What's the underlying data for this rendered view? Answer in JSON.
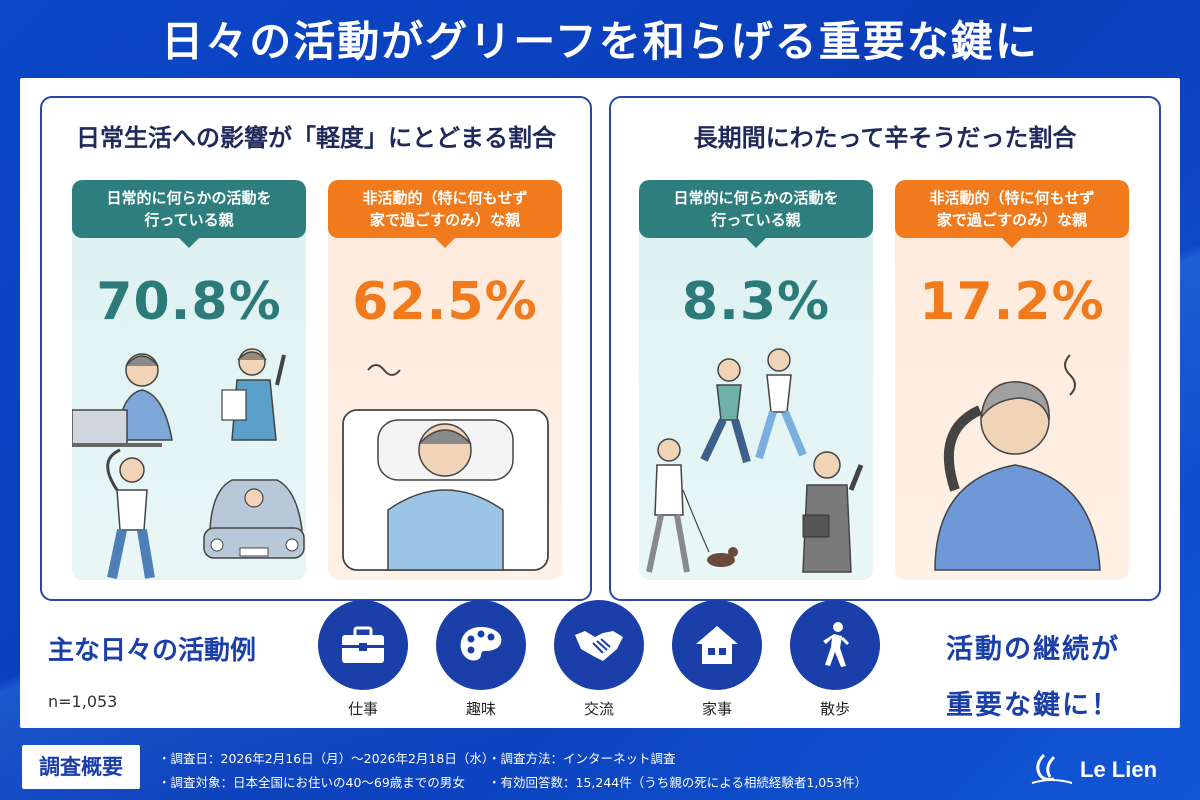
{
  "title": "日々の活動がグリーフを和らげる重要な鍵に",
  "left_card": {
    "title": "日常生活への影響が「軽度」にとどまる割合",
    "active": {
      "label": "日常的に何らかの活動を\n行っている親",
      "value": "70.8%"
    },
    "inactive": {
      "label": "非活動的（特に何もせず\n家で過ごすのみ）な親",
      "value": "62.5%"
    }
  },
  "right_card": {
    "title": "長期間にわたって辛そうだった割合",
    "active": {
      "label": "日常的に何らかの活動を\n行っている親",
      "value": "8.3%"
    },
    "inactive": {
      "label": "非活動的（特に何もせず\n家で過ごすのみ）な親",
      "value": "17.2%"
    }
  },
  "activities": {
    "label": "主な日々の活動例",
    "sample": "n=1,053",
    "items": [
      {
        "label": "仕事",
        "icon": "briefcase-icon"
      },
      {
        "label": "趣味",
        "icon": "palette-icon"
      },
      {
        "label": "交流",
        "icon": "handshake-icon"
      },
      {
        "label": "家事",
        "icon": "house-icon"
      },
      {
        "label": "散歩",
        "icon": "walking-icon"
      }
    ]
  },
  "cta": {
    "line1": "活動の継続が",
    "line2": "重要な鍵に！"
  },
  "footer": {
    "tag": "調査概要",
    "date": "・調査日：2026年2月16日（月）～2026年2月18日（水）",
    "target": "・調査対象：日本全国にお住いの40～69歳までの男女",
    "method": "・調査方法：インターネット調査",
    "count": "・有効回答数：15,244件（うち親の死による相続経験者1,053件）",
    "brand": "Le Lien"
  },
  "colors": {
    "brand_blue": "#1a3fa8",
    "teal": "#2e7e7e",
    "orange": "#f07a1c"
  }
}
